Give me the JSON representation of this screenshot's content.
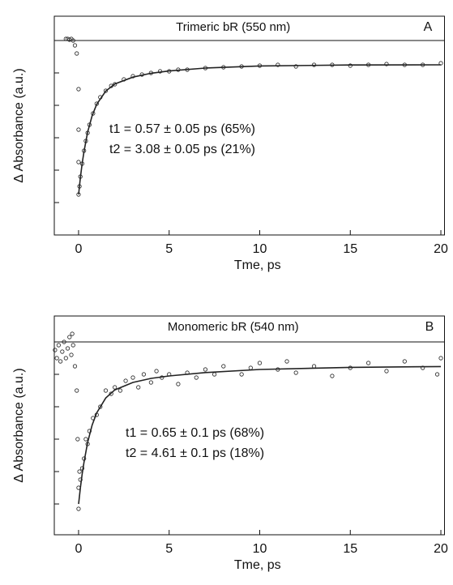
{
  "chart_data": [
    {
      "type": "scatter",
      "title": "Trimeric bR (550 nm)",
      "panel_label": "A",
      "xlabel": "Tme, ps",
      "ylabel": "Δ Absorbance (a.u.)",
      "annotations": [
        "t1 = 0.57 ± 0.05 ps  (65%)",
        "t2 = 3.08 ± 0.05 ps  (21%)"
      ],
      "xlim": [
        -1.34,
        20.2
      ],
      "xticks": [
        0,
        5,
        10,
        15,
        20
      ],
      "ylim": [
        -1.2,
        0.15
      ],
      "yticks": [
        -1.2,
        -1,
        -0.8,
        -0.6,
        -0.4,
        -0.2,
        0
      ],
      "hline": 0,
      "color": "#222",
      "series": [
        {
          "mode": "markers",
          "x": [
            -0.7,
            -0.6,
            -0.5,
            -0.4,
            -0.3,
            -0.2,
            -0.1,
            0,
            0,
            0,
            0,
            0.05,
            0.1,
            0.2,
            0.3,
            0.4,
            0.5,
            0.6,
            0.8,
            1,
            1.2,
            1.5,
            1.8,
            2,
            2.5,
            3,
            3.5,
            4,
            4.5,
            5,
            5.5,
            6,
            7,
            8,
            9,
            10,
            11,
            12,
            13,
            14,
            15,
            16,
            17,
            18,
            19,
            20
          ],
          "values": [
            0.01,
            0.01,
            0.005,
            0.01,
            0.0,
            -0.03,
            -0.08,
            -0.3,
            -0.55,
            -0.75,
            -0.95,
            -0.9,
            -0.84,
            -0.76,
            -0.68,
            -0.62,
            -0.57,
            -0.52,
            -0.45,
            -0.39,
            -0.35,
            -0.31,
            -0.28,
            -0.27,
            -0.24,
            -0.22,
            -0.21,
            -0.2,
            -0.19,
            -0.19,
            -0.18,
            -0.18,
            -0.17,
            -0.165,
            -0.16,
            -0.155,
            -0.15,
            -0.16,
            -0.15,
            -0.15,
            -0.155,
            -0.15,
            -0.145,
            -0.15,
            -0.15,
            -0.14
          ]
        },
        {
          "mode": "line",
          "x": [
            0,
            0.1,
            0.2,
            0.3,
            0.5,
            0.75,
            1,
            1.5,
            2,
            3,
            4,
            5,
            7,
            10,
            15,
            20
          ],
          "values": [
            -0.95,
            -0.846,
            -0.758,
            -0.684,
            -0.566,
            -0.464,
            -0.394,
            -0.312,
            -0.268,
            -0.226,
            -0.202,
            -0.188,
            -0.17,
            -0.157,
            -0.151,
            -0.15
          ]
        }
      ]
    },
    {
      "type": "scatter",
      "title": "Monomeric bR (540 nm)",
      "panel_label": "B",
      "xlabel": "Tme, ps",
      "ylabel": "Δ Absorbance (a.u.)",
      "annotations": [
        "t1 = 0.65 ± 0.1 ps  (68%)",
        "t2 = 4.61 ± 0.1 ps  (18%)"
      ],
      "xlim": [
        -1.34,
        20.2
      ],
      "xticks": [
        0,
        5,
        10,
        15,
        20
      ],
      "ylim": [
        -1.19,
        0.16
      ],
      "yticks": [
        -1.2,
        -1,
        -0.8,
        -0.6,
        -0.4,
        -0.2,
        0
      ],
      "hline": 0,
      "color": "#222",
      "series": [
        {
          "mode": "markers",
          "x": [
            -1.3,
            -1.2,
            -1.1,
            -1.0,
            -0.9,
            -0.8,
            -0.7,
            -0.6,
            -0.5,
            -0.4,
            -0.35,
            -0.3,
            -0.2,
            -0.1,
            -0.05,
            0,
            0,
            0.05,
            0.1,
            0.2,
            0.3,
            0.4,
            0.5,
            0.6,
            0.8,
            1,
            1.2,
            1.5,
            1.8,
            2,
            2.3,
            2.6,
            3,
            3.3,
            3.6,
            4,
            4.3,
            4.6,
            5,
            5.5,
            6,
            6.5,
            7,
            7.5,
            8,
            9,
            9.5,
            10,
            11,
            11.5,
            12,
            13,
            14,
            15,
            16,
            17,
            18,
            19,
            19.8,
            20
          ],
          "values": [
            -0.05,
            -0.1,
            -0.02,
            -0.12,
            -0.06,
            0.0,
            -0.1,
            -0.04,
            0.03,
            -0.08,
            0.05,
            -0.02,
            -0.15,
            -0.3,
            -0.6,
            -0.9,
            -1.03,
            -0.8,
            -0.85,
            -0.78,
            -0.72,
            -0.6,
            -0.63,
            -0.55,
            -0.47,
            -0.45,
            -0.4,
            -0.3,
            -0.32,
            -0.28,
            -0.3,
            -0.24,
            -0.22,
            -0.28,
            -0.2,
            -0.25,
            -0.18,
            -0.22,
            -0.2,
            -0.26,
            -0.19,
            -0.22,
            -0.17,
            -0.2,
            -0.15,
            -0.2,
            -0.16,
            -0.13,
            -0.17,
            -0.12,
            -0.19,
            -0.15,
            -0.21,
            -0.16,
            -0.13,
            -0.18,
            -0.12,
            -0.16,
            -0.2,
            -0.1
          ]
        },
        {
          "mode": "line",
          "x": [
            0,
            0.1,
            0.2,
            0.3,
            0.5,
            0.75,
            1,
            1.5,
            2,
            3,
            4,
            5,
            7,
            10,
            15,
            20
          ],
          "values": [
            -1.0,
            -0.9,
            -0.815,
            -0.741,
            -0.621,
            -0.513,
            -0.438,
            -0.346,
            -0.296,
            -0.25,
            -0.225,
            -0.21,
            -0.189,
            -0.17,
            -0.157,
            -0.152
          ]
        }
      ]
    }
  ]
}
